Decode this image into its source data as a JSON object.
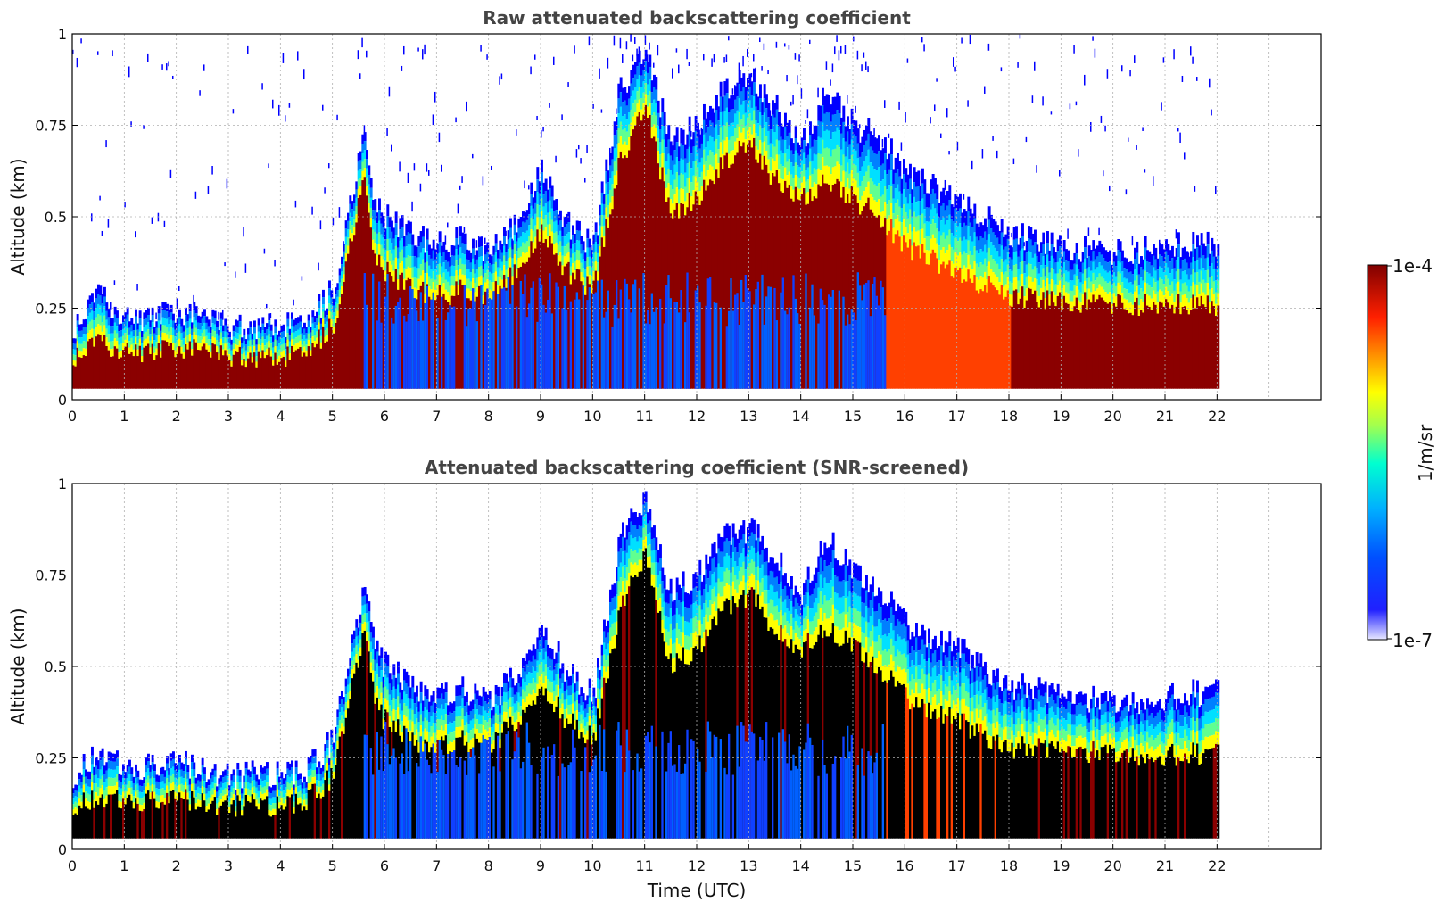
{
  "chart_data": [
    {
      "type": "heatmap",
      "title": "Raw attenuated backscattering coefficient",
      "ylabel": "Altitude (km)",
      "xlabel": "",
      "xlim": [
        0,
        24
      ],
      "ylim": [
        0,
        1
      ],
      "x_ticks": [
        "0",
        "1",
        "2",
        "3",
        "4",
        "5",
        "6",
        "7",
        "8",
        "9",
        "10",
        "11",
        "12",
        "13",
        "14",
        "15",
        "16",
        "17",
        "18",
        "19",
        "20",
        "21",
        "22"
      ],
      "y_ticks": [
        "0",
        "0.25",
        "0.5",
        "0.75",
        "1"
      ],
      "grid": true,
      "colorscale": "jet-log",
      "data_extent_hours": [
        0,
        22
      ],
      "screened": false,
      "layer_profile": {
        "time_h": [
          0,
          0.5,
          1,
          2,
          3,
          4,
          4.4,
          5,
          5.6,
          5.8,
          6,
          6.5,
          7,
          7.5,
          8,
          8.5,
          9,
          9.5,
          10,
          10.5,
          11,
          11.5,
          12,
          12.5,
          13,
          13.5,
          14,
          14.5,
          15,
          15.5,
          16,
          17,
          18,
          19,
          20,
          21,
          22
        ],
        "top_km": [
          0.2,
          0.28,
          0.22,
          0.24,
          0.2,
          0.21,
          0.2,
          0.3,
          0.72,
          0.55,
          0.5,
          0.45,
          0.42,
          0.44,
          0.4,
          0.48,
          0.62,
          0.48,
          0.42,
          0.85,
          0.95,
          0.7,
          0.75,
          0.85,
          0.88,
          0.8,
          0.7,
          0.85,
          0.75,
          0.72,
          0.62,
          0.55,
          0.45,
          0.42,
          0.4,
          0.42,
          0.43
        ],
        "core_top_km": [
          0.12,
          0.15,
          0.13,
          0.14,
          0.12,
          0.12,
          0.12,
          0.2,
          0.6,
          0.4,
          0.35,
          0.3,
          0.28,
          0.3,
          0.28,
          0.35,
          0.45,
          0.35,
          0.3,
          0.65,
          0.8,
          0.5,
          0.55,
          0.65,
          0.7,
          0.6,
          0.55,
          0.6,
          0.55,
          0.5,
          0.42,
          0.35,
          0.28,
          0.27,
          0.26,
          0.26,
          0.26
        ]
      }
    },
    {
      "type": "heatmap",
      "title": "Attenuated backscattering coefficient (SNR-screened)",
      "ylabel": "Altitude (km)",
      "xlabel": "Time (UTC)",
      "xlim": [
        0,
        24
      ],
      "ylim": [
        0,
        1
      ],
      "x_ticks": [
        "0",
        "1",
        "2",
        "3",
        "4",
        "5",
        "6",
        "7",
        "8",
        "9",
        "10",
        "11",
        "12",
        "13",
        "14",
        "15",
        "16",
        "17",
        "18",
        "19",
        "20",
        "21",
        "22"
      ],
      "y_ticks": [
        "0",
        "0.25",
        "0.5",
        "0.75",
        "1"
      ],
      "grid": true,
      "colorscale": "jet-log",
      "data_extent_hours": [
        0,
        22
      ],
      "screened": true,
      "saturated_color": "#000000"
    }
  ],
  "colorbar": {
    "label": "1/m/sr",
    "max_label": "1e-4",
    "min_label": "1e-7",
    "colors": [
      "#e8e8ff",
      "#0000ff",
      "#00a0ff",
      "#00ffd0",
      "#c0ff40",
      "#ffff00",
      "#ff8000",
      "#ff0000",
      "#800000"
    ]
  }
}
